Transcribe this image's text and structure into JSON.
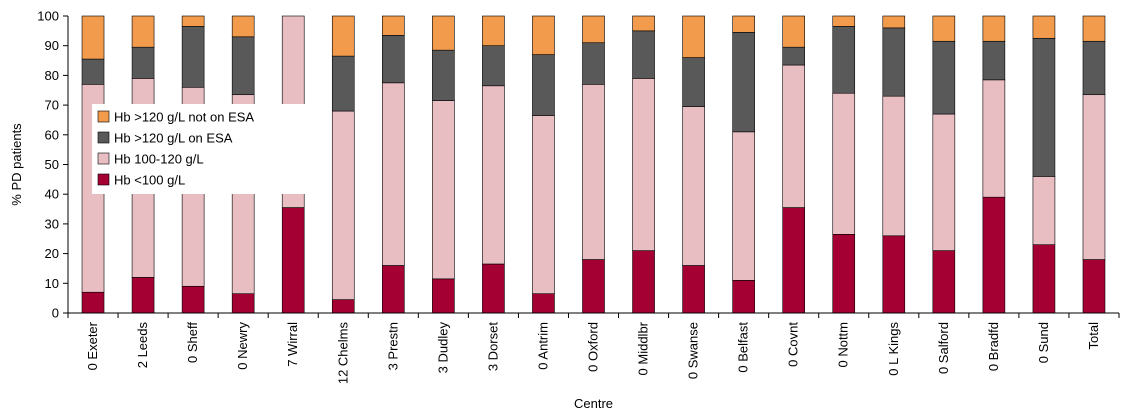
{
  "chart_data": {
    "type": "bar",
    "stacked": true,
    "xlabel": "Centre",
    "ylabel": "% PD patients",
    "ylim": [
      0,
      100
    ],
    "yticks": [
      0,
      10,
      20,
      30,
      40,
      50,
      60,
      70,
      80,
      90,
      100
    ],
    "grid": false,
    "legend_position": "left",
    "categories": [
      "0 Exeter",
      "2 Leeds",
      "0 Sheff",
      "0 Newry",
      "7 Wirral",
      "12 Chelms",
      "3 Prestn",
      "3 Dudley",
      "3 Dorset",
      "0 Antrim",
      "0 Oxford",
      "0 Middlbr",
      "0 Swanse",
      "0 Belfast",
      "0 Covnt",
      "0 Nottm",
      "0 L Kings",
      "0 Salford",
      "0 Bradfd",
      "0 Sund",
      "Total"
    ],
    "series": [
      {
        "name": "Hb <100 g/L",
        "color": "#A50034",
        "values": [
          7,
          12,
          9,
          6.5,
          35.5,
          4.5,
          16,
          11.5,
          16.5,
          6.5,
          18,
          21,
          16,
          11,
          35.5,
          26.5,
          26,
          21,
          39,
          23,
          18
        ]
      },
      {
        "name": "Hb 100-120 g/L",
        "color": "#E8BEC3",
        "values": [
          70,
          67,
          67,
          67,
          64.5,
          63.5,
          61.5,
          60,
          60,
          60,
          59,
          58,
          53.5,
          50,
          48,
          47.5,
          47,
          46,
          39.5,
          23,
          55.5
        ]
      },
      {
        "name": "Hb >120 g/L on ESA",
        "color": "#595959",
        "values": [
          8.5,
          10.5,
          20.5,
          19.5,
          0,
          18.5,
          16,
          17,
          13.5,
          20.5,
          14,
          16,
          16.5,
          33.5,
          6,
          22.5,
          23,
          24.5,
          13,
          46.5,
          18
        ]
      },
      {
        "name": "Hb >120 g/L not on ESA",
        "color": "#F39B4C",
        "values": [
          14.5,
          10.5,
          3.5,
          7,
          0,
          13.5,
          6.5,
          11.5,
          10,
          13,
          9,
          5,
          14,
          5.5,
          10.5,
          3.5,
          4,
          8.5,
          8.5,
          7.5,
          8.5
        ]
      }
    ]
  }
}
